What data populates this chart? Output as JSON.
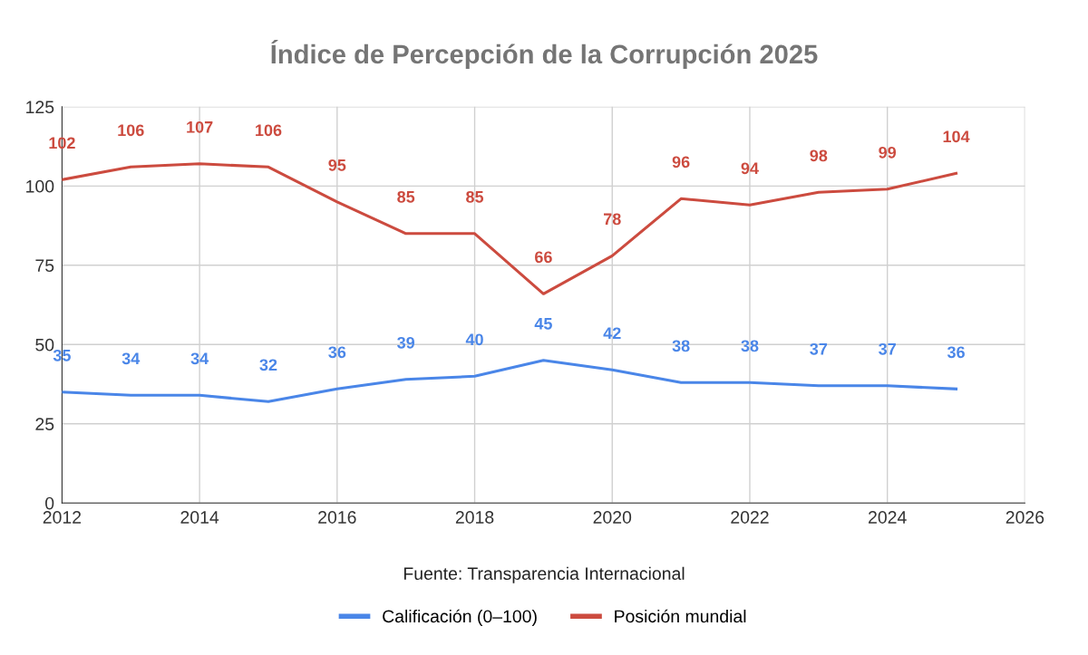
{
  "chart_data": {
    "type": "line",
    "title": "Índice de Percepción de la Corrupción 2025",
    "x": [
      2012,
      2013,
      2014,
      2015,
      2016,
      2017,
      2018,
      2019,
      2020,
      2021,
      2022,
      2023,
      2024,
      2025
    ],
    "series": [
      {
        "name": "Calificación (0–100)",
        "color": "#4a86e8",
        "values": [
          35,
          34,
          34,
          32,
          36,
          39,
          40,
          45,
          42,
          38,
          38,
          37,
          37,
          36
        ]
      },
      {
        "name": "Posición mundial",
        "color": "#cc4b3f",
        "values": [
          102,
          106,
          107,
          106,
          95,
          85,
          85,
          66,
          78,
          96,
          94,
          98,
          99,
          104
        ]
      }
    ],
    "xlim": [
      2012,
      2026
    ],
    "xticks": [
      2012,
      2014,
      2016,
      2018,
      2020,
      2022,
      2024,
      2026
    ],
    "ylim": [
      0,
      125
    ],
    "yticks": [
      0,
      25,
      50,
      75,
      100,
      125
    ],
    "grid": true,
    "legend": "bottom",
    "data_labels": true,
    "marker": "none",
    "line_style": "solid",
    "annotations": [
      "Fuente: Transparencia Internacional"
    ]
  }
}
